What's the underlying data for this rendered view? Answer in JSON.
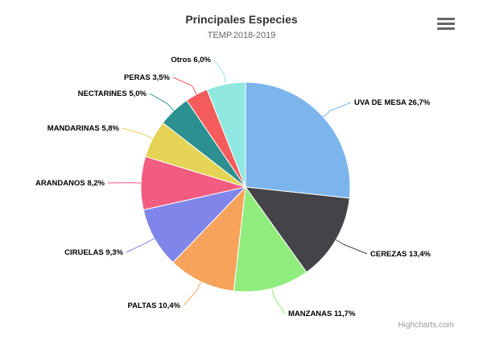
{
  "chart_data": {
    "type": "pie",
    "title": "Principales Especies",
    "subtitle": "TEMP.2018-2019",
    "credits": "Highcharts.com",
    "slices": [
      {
        "label": "UVA DE MESA 26,7%",
        "value": 26.7,
        "color": "#7cb5ec"
      },
      {
        "label": "CEREZAS 13,4%",
        "value": 13.4,
        "color": "#434348"
      },
      {
        "label": "MANZANAS 11,7%",
        "value": 11.7,
        "color": "#90ed7d"
      },
      {
        "label": "PALTAS 10,4%",
        "value": 10.4,
        "color": "#f7a35c"
      },
      {
        "label": "CIRUELAS 9,3%",
        "value": 9.3,
        "color": "#8085e9"
      },
      {
        "label": "ARANDANOS 8,2%",
        "value": 8.2,
        "color": "#f15c80"
      },
      {
        "label": "MANDARINAS 5,8%",
        "value": 5.8,
        "color": "#e4d354"
      },
      {
        "label": "NECTARINES 5,0%",
        "value": 5.0,
        "color": "#2b908f"
      },
      {
        "label": "PERAS 3,5%",
        "value": 3.5,
        "color": "#f45b5b"
      },
      {
        "label": "Otros 6,0%",
        "value": 6.0,
        "color": "#91e8e1"
      }
    ]
  },
  "icons": {
    "menu": "hamburger-menu-icon"
  }
}
